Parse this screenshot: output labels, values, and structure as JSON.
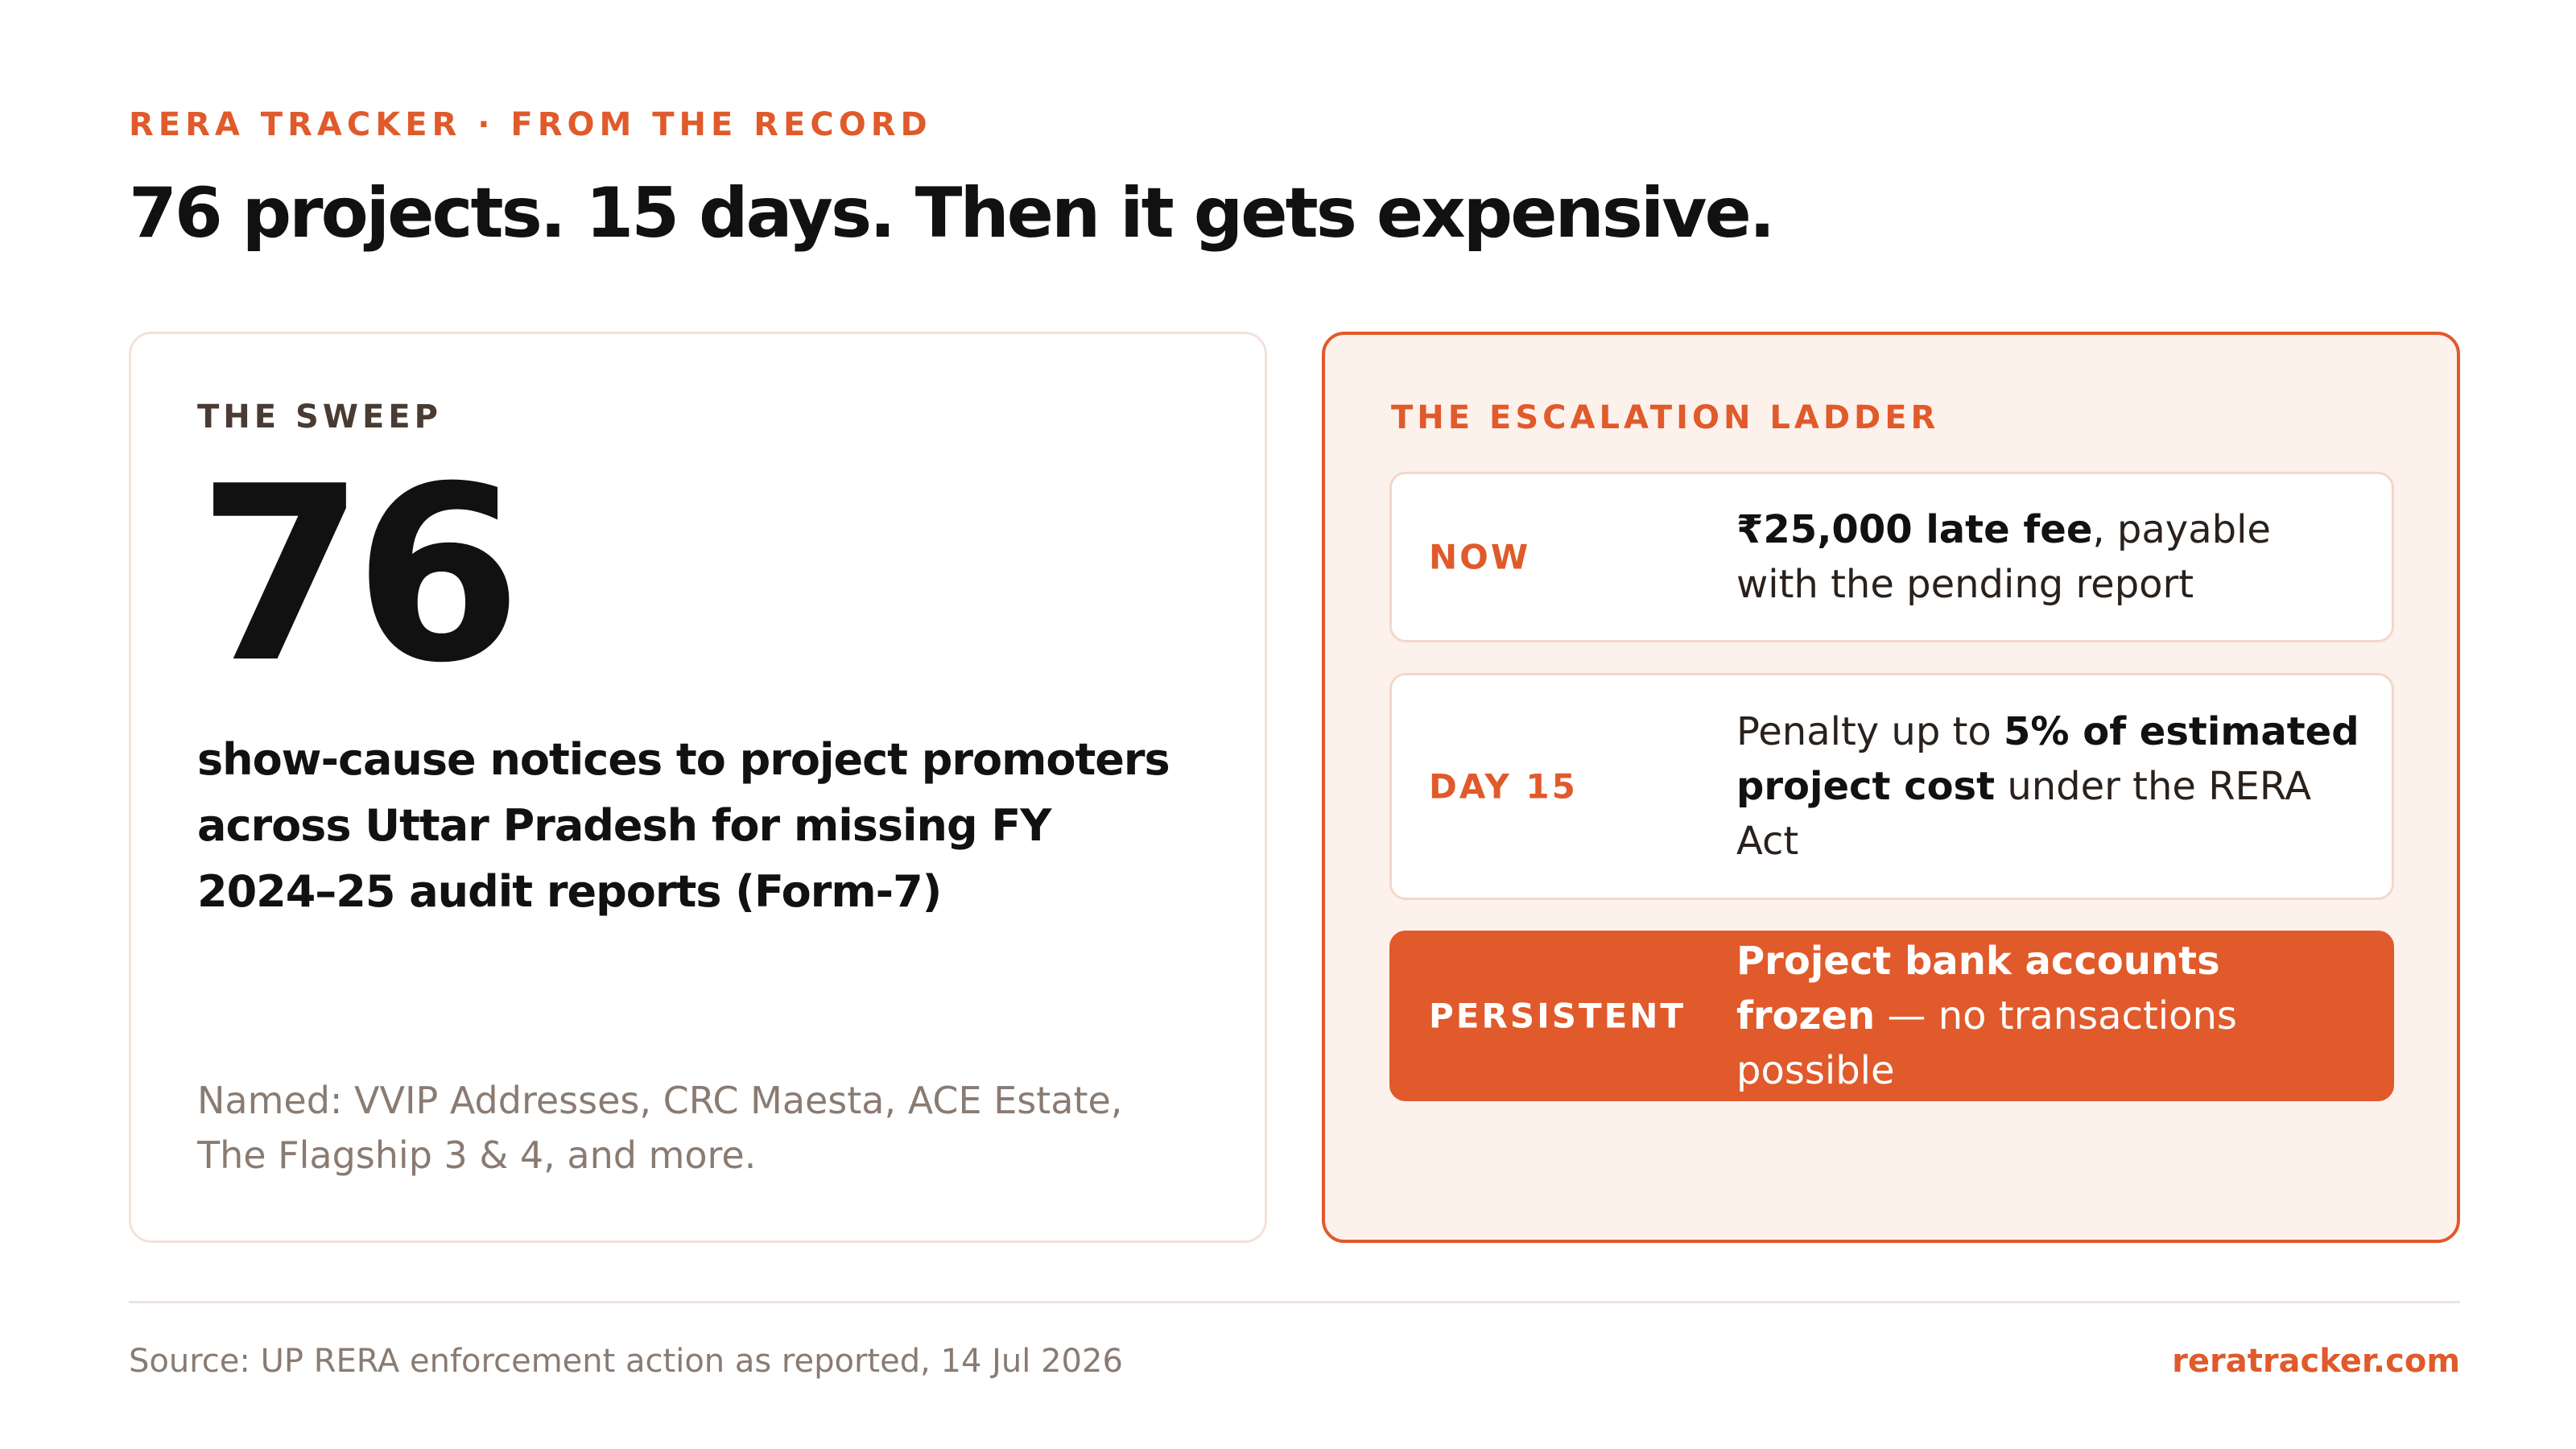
{
  "header": {
    "kicker": "RERA TRACKER · FROM THE RECORD",
    "headline": "76 projects. 15 days. Then it gets expensive."
  },
  "sweep": {
    "label": "THE SWEEP",
    "number": "76",
    "description": "show-cause notices to project promoters across Uttar Pradesh for missing FY 2024–25 audit reports (Form-7)",
    "named": "Named: VVIP Addresses, CRC Maesta, ACE Estate, The Flagship 3 & 4, and more."
  },
  "ladder": {
    "label": "THE ESCALATION LADDER",
    "steps": [
      {
        "label": "NOW",
        "bold": "₹25,000 late fee",
        "rest": ", payable with the pending report"
      },
      {
        "label": "DAY 15",
        "pre": "Penalty up to ",
        "bold": "5% of estimated project cost",
        "rest": " under the RERA Act"
      },
      {
        "label": "PERSISTENT",
        "bold": "Project bank accounts frozen",
        "rest": " — no transactions possible"
      }
    ]
  },
  "footer": {
    "source": "Source: UP RERA enforcement action as reported, 14 Jul 2026",
    "site": "reratracker.com"
  },
  "colors": {
    "accent": "#e05a2b",
    "panel_tint": "#fdf1eb",
    "muted_text": "#8a7b72"
  }
}
